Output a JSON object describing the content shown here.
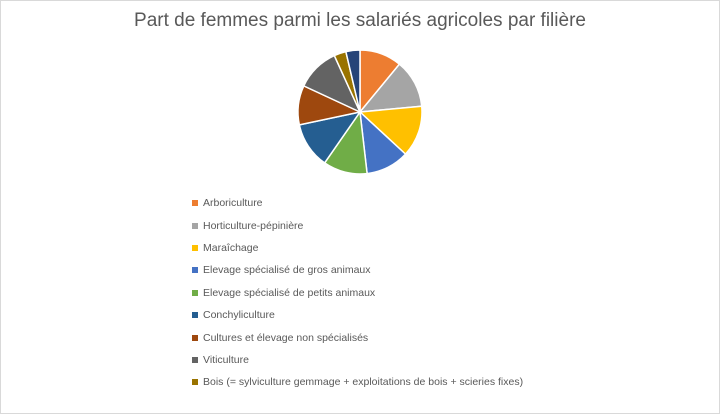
{
  "chart_data": {
    "type": "pie",
    "title": "Part de femmes parmi les salariés agricoles par filière",
    "categories": [
      "Arboriculture",
      "Horticulture-pépinière",
      "Maraîchage",
      "Elevage spécialisé de gros animaux",
      "Elevage spécialisé de petits animaux",
      "Conchyliculture",
      "Cultures et élevage non spécialisés",
      "Viticulture",
      "Bois (= sylviculture gemmage + exploitations de bois + scieries fixes)",
      ""
    ],
    "values": [
      10.5,
      12.0,
      12.8,
      10.8,
      11.0,
      11.5,
      9.8,
      10.8,
      3.0,
      3.5
    ],
    "colors": [
      "#ED7D31",
      "#A5A5A5",
      "#FFC000",
      "#4472C4",
      "#70AD47",
      "#255E91",
      "#9E480E",
      "#636363",
      "#997300",
      "#264478"
    ],
    "legend_position": "bottom"
  }
}
